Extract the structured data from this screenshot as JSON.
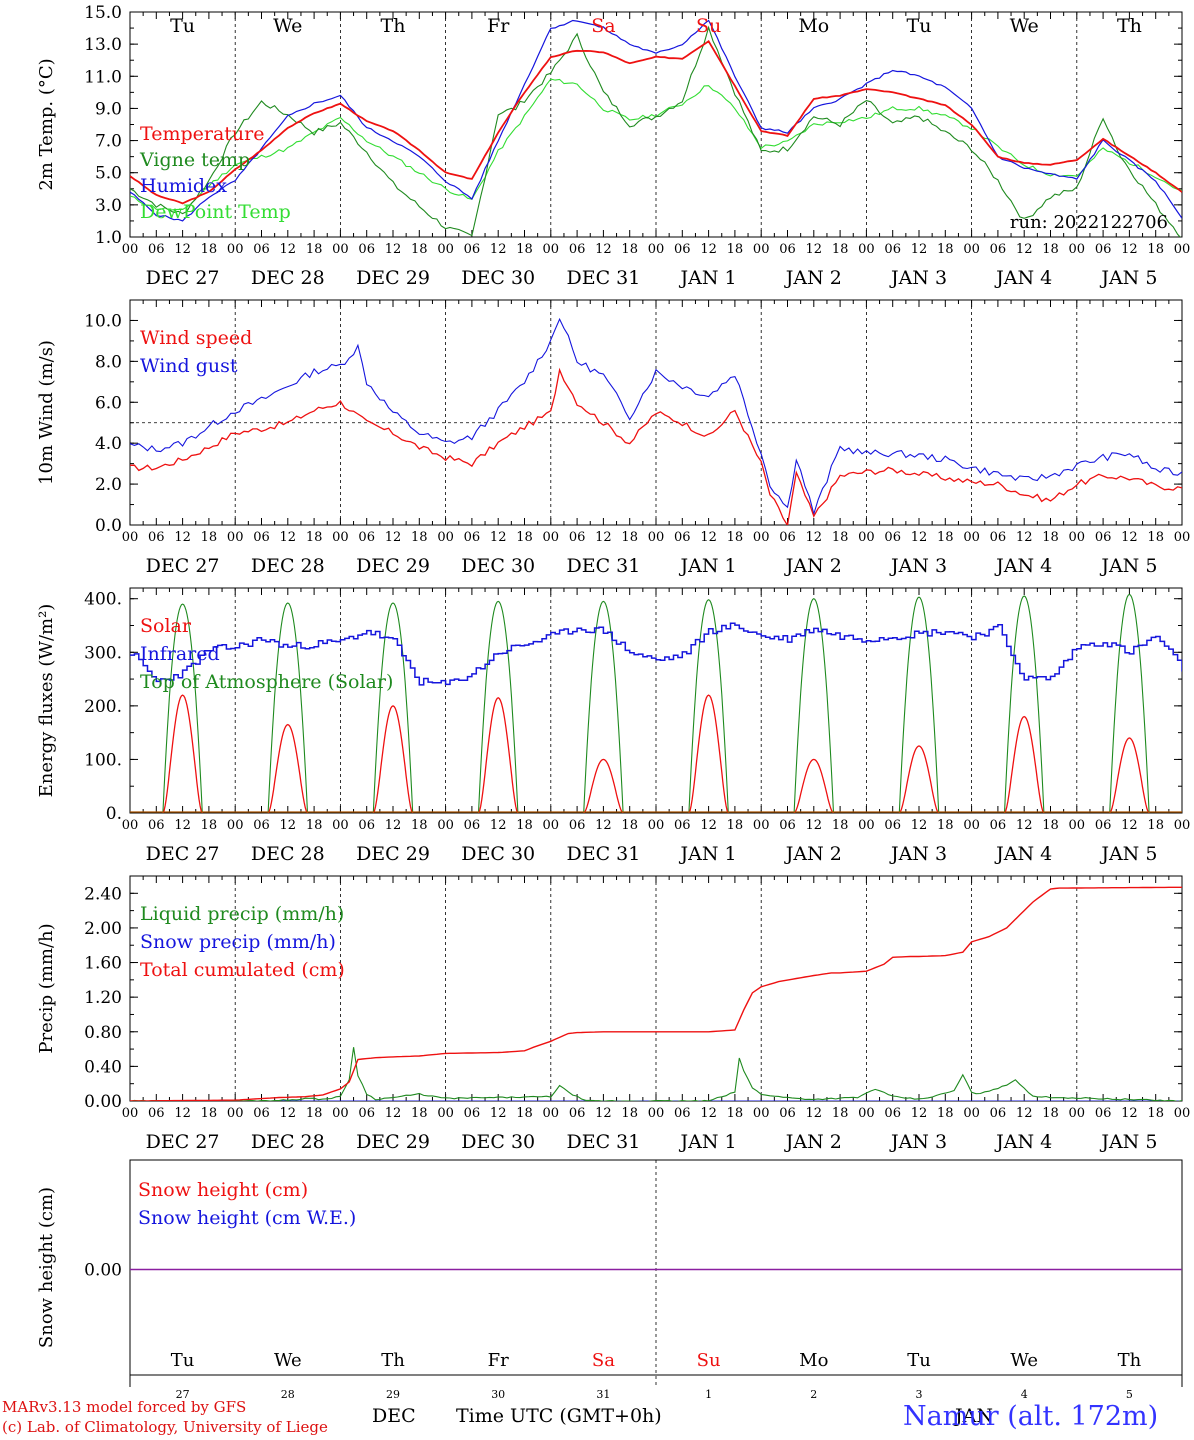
{
  "meteogram": {
    "station": "Namur (alt. 172m)",
    "run_label": "run: 2022122706",
    "credit_line1": "MARv3.13 model forced by GFS",
    "credit_line2": "(c) Lab. of Climatology, University of Liege",
    "time_axis_label": "Time UTC (GMT+0h)",
    "month_label_dec": "DEC",
    "month_label_jan": "JAN",
    "hour_ticks": [
      "00",
      "06",
      "12",
      "18"
    ],
    "date_labels": [
      "DEC 27",
      "DEC 28",
      "DEC 29",
      "DEC 30",
      "DEC 31",
      "JAN  1",
      "JAN  2",
      "JAN  3",
      "JAN  4",
      "JAN  5"
    ],
    "weekdays": [
      "Tu",
      "We",
      "Th",
      "Fr",
      "Sa",
      "Su",
      "Mo",
      "Tu",
      "We",
      "Th"
    ],
    "weekend_flags": [
      false,
      false,
      false,
      false,
      true,
      true,
      false,
      false,
      false,
      false
    ],
    "day_numbers": [
      "27",
      "28",
      "29",
      "30",
      "31",
      "1",
      "2",
      "3",
      "4",
      "5"
    ],
    "colors": {
      "red": "#ee1111",
      "blue": "#1515dd",
      "green": "#1f8a1f",
      "lightgreen": "#33dd33",
      "purple": "#8a1fa0",
      "credit": "#dd1111",
      "station": "#3333ff"
    }
  },
  "chart_data": [
    {
      "type": "line",
      "ylabel": "2m Temp. (°C)",
      "ylim": [
        1,
        15
      ],
      "yticks": [
        "1.0",
        "3.0",
        "5.0",
        "7.0",
        "9.0",
        "11.0",
        "13.0",
        "15.0"
      ],
      "x_unit": "hours since DEC 27 00 UTC",
      "x_range": [
        0,
        240
      ],
      "series": [
        {
          "name": "Temperature",
          "color": "#ee1111",
          "x": [
            0,
            6,
            12,
            18,
            24,
            30,
            36,
            42,
            48,
            54,
            60,
            66,
            72,
            78,
            84,
            90,
            96,
            102,
            108,
            114,
            120,
            126,
            132,
            138,
            144,
            150,
            156,
            162,
            168,
            174,
            180,
            186,
            192,
            198,
            204,
            210,
            216,
            222,
            234,
            240
          ],
          "y": [
            4.8,
            3.6,
            3.1,
            3.8,
            5.2,
            6.4,
            7.8,
            8.7,
            9.3,
            8.2,
            7.6,
            6.4,
            5.0,
            4.6,
            7.5,
            10.0,
            12.2,
            12.6,
            12.5,
            11.8,
            12.2,
            12.1,
            13.2,
            10.4,
            7.6,
            7.3,
            9.6,
            9.8,
            10.2,
            10.0,
            9.6,
            9.2,
            8.0,
            6.0,
            5.6,
            5.5,
            5.8,
            7.1,
            5.0,
            3.8
          ]
        },
        {
          "name": "Vigne temp",
          "color": "#1f8a1f",
          "x": [
            0,
            6,
            12,
            18,
            24,
            30,
            36,
            42,
            48,
            54,
            60,
            66,
            72,
            78,
            80,
            84,
            88,
            96,
            102,
            108,
            114,
            120,
            126,
            132,
            138,
            144,
            150,
            156,
            162,
            168,
            174,
            180,
            186,
            192,
            198,
            204,
            210,
            216,
            222,
            226,
            234,
            240
          ],
          "y": [
            4.0,
            3.0,
            2.4,
            4.5,
            7.5,
            9.4,
            8.6,
            7.5,
            8.1,
            6.3,
            4.3,
            2.9,
            1.6,
            1.0,
            3.5,
            8.7,
            9.0,
            11.2,
            13.5,
            10.0,
            8.0,
            8.5,
            9.5,
            14.0,
            10.0,
            6.3,
            6.5,
            8.5,
            8.0,
            9.5,
            8.0,
            8.5,
            7.5,
            6.5,
            4.5,
            2.0,
            3.5,
            4.0,
            8.5,
            6.0,
            3.0,
            1.0
          ]
        },
        {
          "name": "Humidex",
          "color": "#1515dd",
          "x": [
            0,
            6,
            12,
            18,
            24,
            30,
            36,
            42,
            48,
            54,
            60,
            66,
            72,
            78,
            84,
            90,
            96,
            102,
            108,
            114,
            120,
            126,
            132,
            138,
            144,
            150,
            156,
            162,
            168,
            174,
            180,
            186,
            192,
            198,
            204,
            210,
            216,
            222,
            234,
            240
          ],
          "y": [
            3.8,
            2.4,
            2.0,
            3.5,
            4.5,
            6.5,
            8.5,
            9.3,
            9.8,
            7.8,
            7.0,
            6.0,
            4.5,
            3.4,
            7.0,
            10.5,
            14.0,
            14.5,
            14.0,
            13.0,
            12.4,
            13.0,
            14.5,
            11.0,
            7.8,
            7.5,
            9.0,
            9.6,
            10.5,
            11.4,
            11.0,
            10.3,
            9.0,
            6.0,
            5.3,
            4.9,
            4.6,
            7.0,
            4.5,
            2.2
          ]
        },
        {
          "name": "DewPoint Temp",
          "color": "#33dd33",
          "x": [
            0,
            6,
            12,
            18,
            24,
            30,
            36,
            42,
            48,
            54,
            60,
            66,
            72,
            78,
            84,
            90,
            96,
            102,
            108,
            114,
            120,
            126,
            132,
            138,
            144,
            150,
            156,
            162,
            168,
            174,
            180,
            186,
            192,
            198,
            204,
            210,
            216,
            222,
            234,
            240
          ],
          "y": [
            3.5,
            2.8,
            2.6,
            4.2,
            5.5,
            6.0,
            6.5,
            7.5,
            8.4,
            7.0,
            6.0,
            5.0,
            4.0,
            3.3,
            6.3,
            8.5,
            10.8,
            10.5,
            9.0,
            8.3,
            8.6,
            9.3,
            10.5,
            9.0,
            6.6,
            6.9,
            8.0,
            8.2,
            8.4,
            9.0,
            9.0,
            8.5,
            7.8,
            6.6,
            5.5,
            4.9,
            4.8,
            6.5,
            4.8,
            3.8
          ]
        }
      ]
    },
    {
      "type": "line",
      "ylabel": "10m Wind (m/s)",
      "ylim": [
        0,
        11
      ],
      "yticks": [
        "0.0",
        "2.0",
        "4.0",
        "6.0",
        "8.0",
        "10.0"
      ],
      "reference_line": 5,
      "x_range": [
        0,
        240
      ],
      "series": [
        {
          "name": "Wind speed",
          "color": "#ee1111",
          "x": [
            0,
            6,
            12,
            18,
            24,
            30,
            36,
            42,
            48,
            54,
            60,
            66,
            72,
            78,
            84,
            90,
            96,
            98,
            102,
            108,
            114,
            120,
            126,
            132,
            138,
            144,
            146,
            150,
            152,
            156,
            162,
            168,
            174,
            180,
            186,
            192,
            198,
            204,
            210,
            216,
            222,
            228,
            234,
            240
          ],
          "y": [
            2.8,
            2.8,
            3.2,
            3.8,
            4.5,
            4.7,
            5.0,
            5.6,
            6.0,
            5.0,
            4.5,
            3.8,
            3.3,
            3.0,
            4.0,
            4.8,
            5.5,
            7.6,
            6.0,
            5.0,
            4.0,
            5.5,
            5.0,
            4.3,
            5.6,
            3.0,
            1.5,
            0.0,
            2.5,
            0.4,
            2.4,
            2.6,
            2.7,
            2.5,
            2.3,
            2.1,
            2.0,
            1.5,
            1.2,
            2.0,
            2.4,
            2.3,
            1.9,
            1.8
          ]
        },
        {
          "name": "Wind gust",
          "color": "#1515dd",
          "x": [
            0,
            6,
            12,
            18,
            24,
            30,
            36,
            42,
            48,
            52,
            54,
            60,
            66,
            72,
            78,
            84,
            90,
            96,
            98,
            102,
            108,
            114,
            120,
            126,
            132,
            138,
            144,
            146,
            150,
            152,
            156,
            162,
            168,
            174,
            180,
            186,
            192,
            198,
            204,
            210,
            216,
            222,
            228,
            234,
            240
          ],
          "y": [
            3.9,
            3.7,
            4.0,
            4.8,
            5.6,
            6.1,
            6.8,
            7.5,
            7.8,
            8.7,
            7.0,
            5.5,
            4.5,
            4.0,
            4.3,
            5.6,
            7.0,
            9.0,
            10.2,
            8.0,
            7.3,
            5.3,
            7.5,
            6.8,
            6.3,
            7.4,
            3.5,
            2.0,
            0.8,
            3.3,
            0.6,
            3.8,
            3.5,
            3.5,
            3.4,
            3.2,
            2.8,
            2.5,
            2.2,
            2.4,
            2.9,
            3.3,
            3.5,
            2.7,
            2.5
          ]
        }
      ]
    },
    {
      "type": "line",
      "ylabel": "Energy fluxes (W/m²)",
      "ylim": [
        0,
        420
      ],
      "yticks": [
        "0.",
        "100.",
        "200.",
        "300.",
        "400."
      ],
      "x_range": [
        0,
        240
      ],
      "solar_peaks": [
        220,
        165,
        200,
        215,
        100,
        220,
        100,
        125,
        180,
        140
      ],
      "toa_peaks": [
        390,
        392,
        392,
        395,
        395,
        398,
        400,
        403,
        405,
        408
      ],
      "series": [
        {
          "name": "Solar",
          "color": "#ee1111"
        },
        {
          "name": "Infrared",
          "color": "#1515dd",
          "x": [
            0,
            6,
            12,
            18,
            24,
            30,
            36,
            42,
            48,
            54,
            60,
            66,
            72,
            78,
            84,
            90,
            96,
            102,
            108,
            114,
            120,
            126,
            132,
            138,
            144,
            150,
            156,
            162,
            168,
            174,
            180,
            186,
            192,
            198,
            204,
            210,
            216,
            222,
            228,
            234,
            240
          ],
          "y": [
            300,
            245,
            262,
            305,
            310,
            325,
            310,
            315,
            320,
            340,
            320,
            245,
            240,
            260,
            300,
            315,
            330,
            345,
            340,
            300,
            285,
            295,
            340,
            350,
            330,
            325,
            345,
            330,
            325,
            330,
            335,
            340,
            330,
            345,
            250,
            252,
            310,
            320,
            300,
            330,
            270
          ]
        },
        {
          "name": "Top of Atmosphere (Solar)",
          "color": "#1f8a1f"
        }
      ]
    },
    {
      "type": "line",
      "ylabel": "Precip (mm/h)",
      "ylim": [
        0,
        2.6
      ],
      "yticks": [
        "0.00",
        "0.40",
        "0.80",
        "1.20",
        "1.60",
        "2.00",
        "2.40"
      ],
      "x_range": [
        0,
        240
      ],
      "series": [
        {
          "name": "Liquid precip (mm/h)",
          "color": "#1f8a1f",
          "x": [
            0,
            24,
            36,
            40,
            44,
            48,
            50,
            51,
            52,
            54,
            56,
            60,
            66,
            72,
            96,
            98,
            100,
            102,
            104,
            132,
            138,
            139,
            140,
            142,
            144,
            148,
            152,
            156,
            166,
            170,
            174,
            180,
            184,
            188,
            190,
            192,
            194,
            196,
            200,
            202,
            204,
            206,
            240
          ],
          "y": [
            0,
            0,
            0.01,
            0.03,
            0.02,
            0.05,
            0.25,
            0.62,
            0.3,
            0.08,
            0.02,
            0.04,
            0.08,
            0.03,
            0.05,
            0.18,
            0.1,
            0.05,
            0.0,
            0.0,
            0.1,
            0.5,
            0.35,
            0.15,
            0.08,
            0.05,
            0.03,
            0.02,
            0.04,
            0.14,
            0.05,
            0.02,
            0.06,
            0.12,
            0.3,
            0.1,
            0.08,
            0.12,
            0.18,
            0.25,
            0.15,
            0.05,
            0
          ]
        },
        {
          "name": "Snow precip (mm/h)",
          "color": "#1515dd",
          "x": [
            0,
            240
          ],
          "y": [
            0,
            0
          ]
        },
        {
          "name": "Total cumulated (cm)",
          "color": "#ee1111",
          "x": [
            0,
            24,
            34,
            40,
            44,
            48,
            50,
            52,
            56,
            60,
            66,
            72,
            84,
            90,
            92,
            96,
            100,
            102,
            108,
            114,
            120,
            126,
            132,
            138,
            140,
            142,
            144,
            148,
            156,
            160,
            162,
            168,
            172,
            174,
            178,
            180,
            186,
            190,
            192,
            196,
            200,
            204,
            206,
            210,
            212,
            240
          ],
          "y": [
            0,
            0.01,
            0.04,
            0.05,
            0.07,
            0.14,
            0.22,
            0.48,
            0.5,
            0.51,
            0.52,
            0.55,
            0.56,
            0.58,
            0.62,
            0.69,
            0.78,
            0.79,
            0.8,
            0.8,
            0.8,
            0.8,
            0.8,
            0.82,
            1.05,
            1.25,
            1.32,
            1.38,
            1.45,
            1.48,
            1.48,
            1.5,
            1.58,
            1.66,
            1.67,
            1.67,
            1.68,
            1.72,
            1.84,
            1.9,
            2.0,
            2.2,
            2.3,
            2.45,
            2.46,
            2.47
          ]
        }
      ]
    },
    {
      "type": "line",
      "ylabel": "Snow height (cm)",
      "yticks": [
        "0.00"
      ],
      "x_range": [
        0,
        240
      ],
      "series": [
        {
          "name": "Snow height (cm)",
          "color": "#ee1111",
          "x": [
            0,
            240
          ],
          "y": [
            0,
            0
          ]
        },
        {
          "name": "Snow height (cm W.E.)",
          "color": "#1515dd",
          "x": [
            0,
            240
          ],
          "y": [
            0,
            0
          ]
        }
      ]
    }
  ]
}
